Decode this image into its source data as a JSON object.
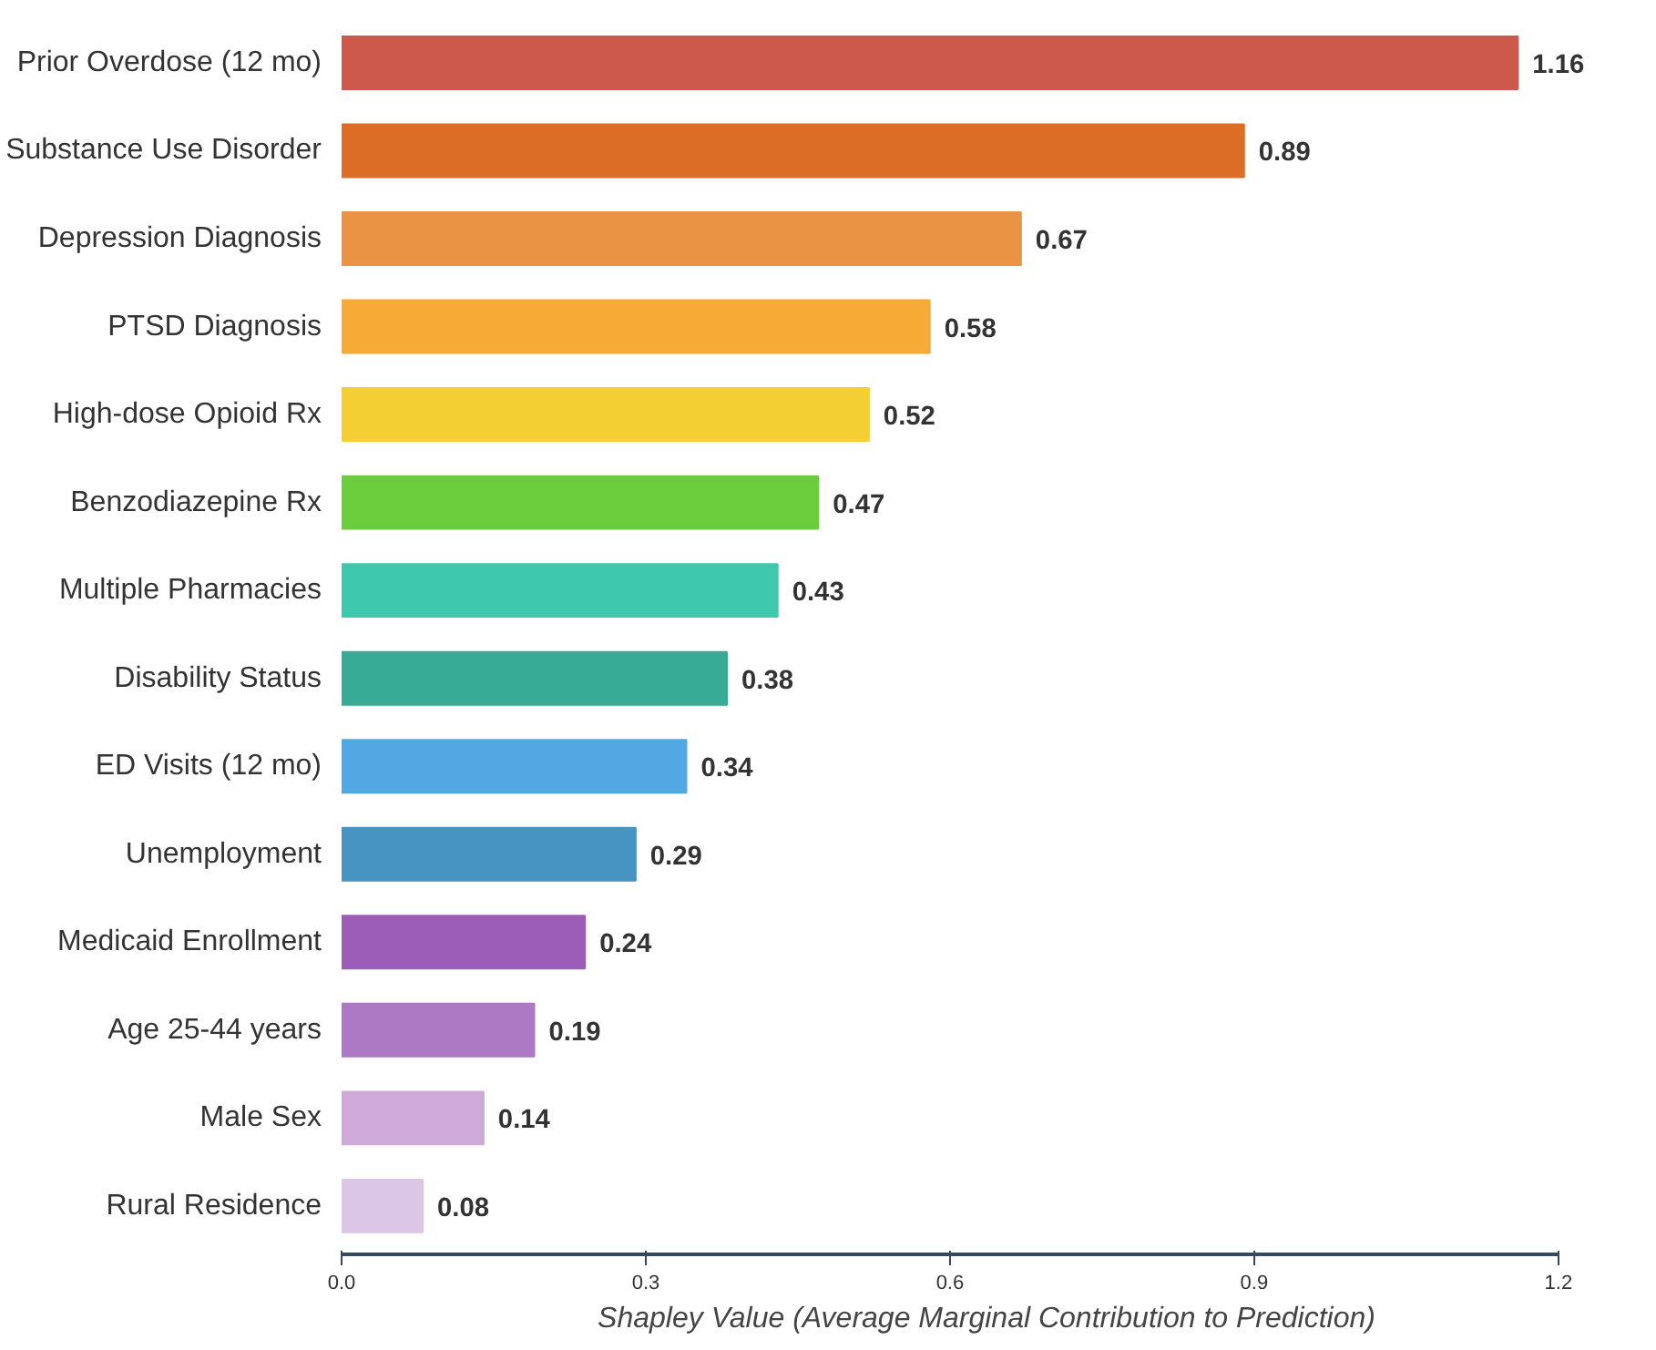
{
  "chart_data": {
    "type": "bar",
    "orientation": "horizontal",
    "xlabel": "Shapley Value (Average Marginal Contribution to Prediction)",
    "categories": [
      "Prior Overdose (12 mo)",
      "Substance Use Disorder",
      "Depression Diagnosis",
      "PTSD Diagnosis",
      "High-dose Opioid Rx",
      "Benzodiazepine Rx",
      "Multiple Pharmacies",
      "Disability Status",
      "ED Visits (12 mo)",
      "Unemployment",
      "Medicaid Enrollment",
      "Age 25-44 years",
      "Male Sex",
      "Rural Residence"
    ],
    "values": [
      1.16,
      0.89,
      0.67,
      0.58,
      0.52,
      0.47,
      0.43,
      0.38,
      0.34,
      0.29,
      0.24,
      0.19,
      0.14,
      0.08
    ],
    "colors": [
      "#cd594c",
      "#dc6d26",
      "#eb9344",
      "#f5ab35",
      "#f4cf34",
      "#6bcd3b",
      "#3ec8ad",
      "#37ab96",
      "#52a8e2",
      "#4793c2",
      "#9c5db8",
      "#ad78c4",
      "#cfaad9",
      "#dcc6e6"
    ],
    "xlim": [
      0,
      1.2
    ],
    "xticks": [
      {
        "value": 0,
        "label": "0.0"
      },
      0.3,
      0.6,
      0.9,
      1.2
    ],
    "data_labels": true,
    "grid": false
  }
}
